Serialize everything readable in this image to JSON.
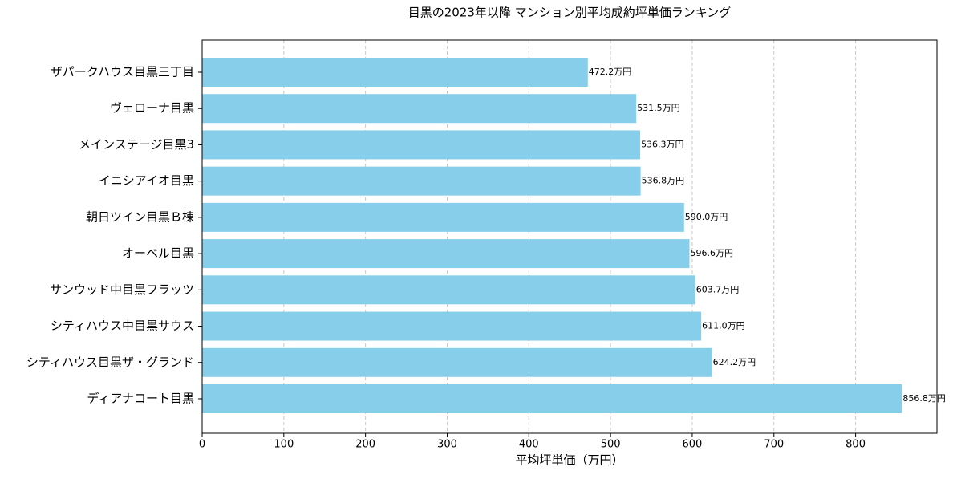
{
  "chart_data": {
    "type": "barh",
    "title": "目黒の2023年以降 マンション別平均成約坪単価ランキング",
    "x_label": "平均坪単価（万円）",
    "categories": [
      "ザパークハウス目黒三丁目",
      "ヴェローナ目黒",
      "メインステージ目黒3",
      "イニシアイオ目黒",
      "朝日ツイン目黒Ｂ棟",
      "オーベル目黒",
      "サンウッド中目黒フラッツ",
      "シティハウス中目黒サウス",
      "シティハウス目黒ザ・グランド",
      "ディアナコート目黒"
    ],
    "values": [
      472.2,
      531.5,
      536.3,
      536.8,
      590.0,
      596.6,
      603.7,
      611.0,
      624.2,
      856.8
    ],
    "value_labels": [
      "472.2万円",
      "531.5万円",
      "536.3万円",
      "536.8万円",
      "590.0万円",
      "596.6万円",
      "603.7万円",
      "611.0万円",
      "624.2万円",
      "856.8万円"
    ],
    "color": "#87ceeb",
    "xlim": [
      0,
      899.6
    ],
    "xticks": [
      0,
      100,
      200,
      300,
      400,
      500,
      600,
      700,
      800
    ],
    "grid": true
  }
}
